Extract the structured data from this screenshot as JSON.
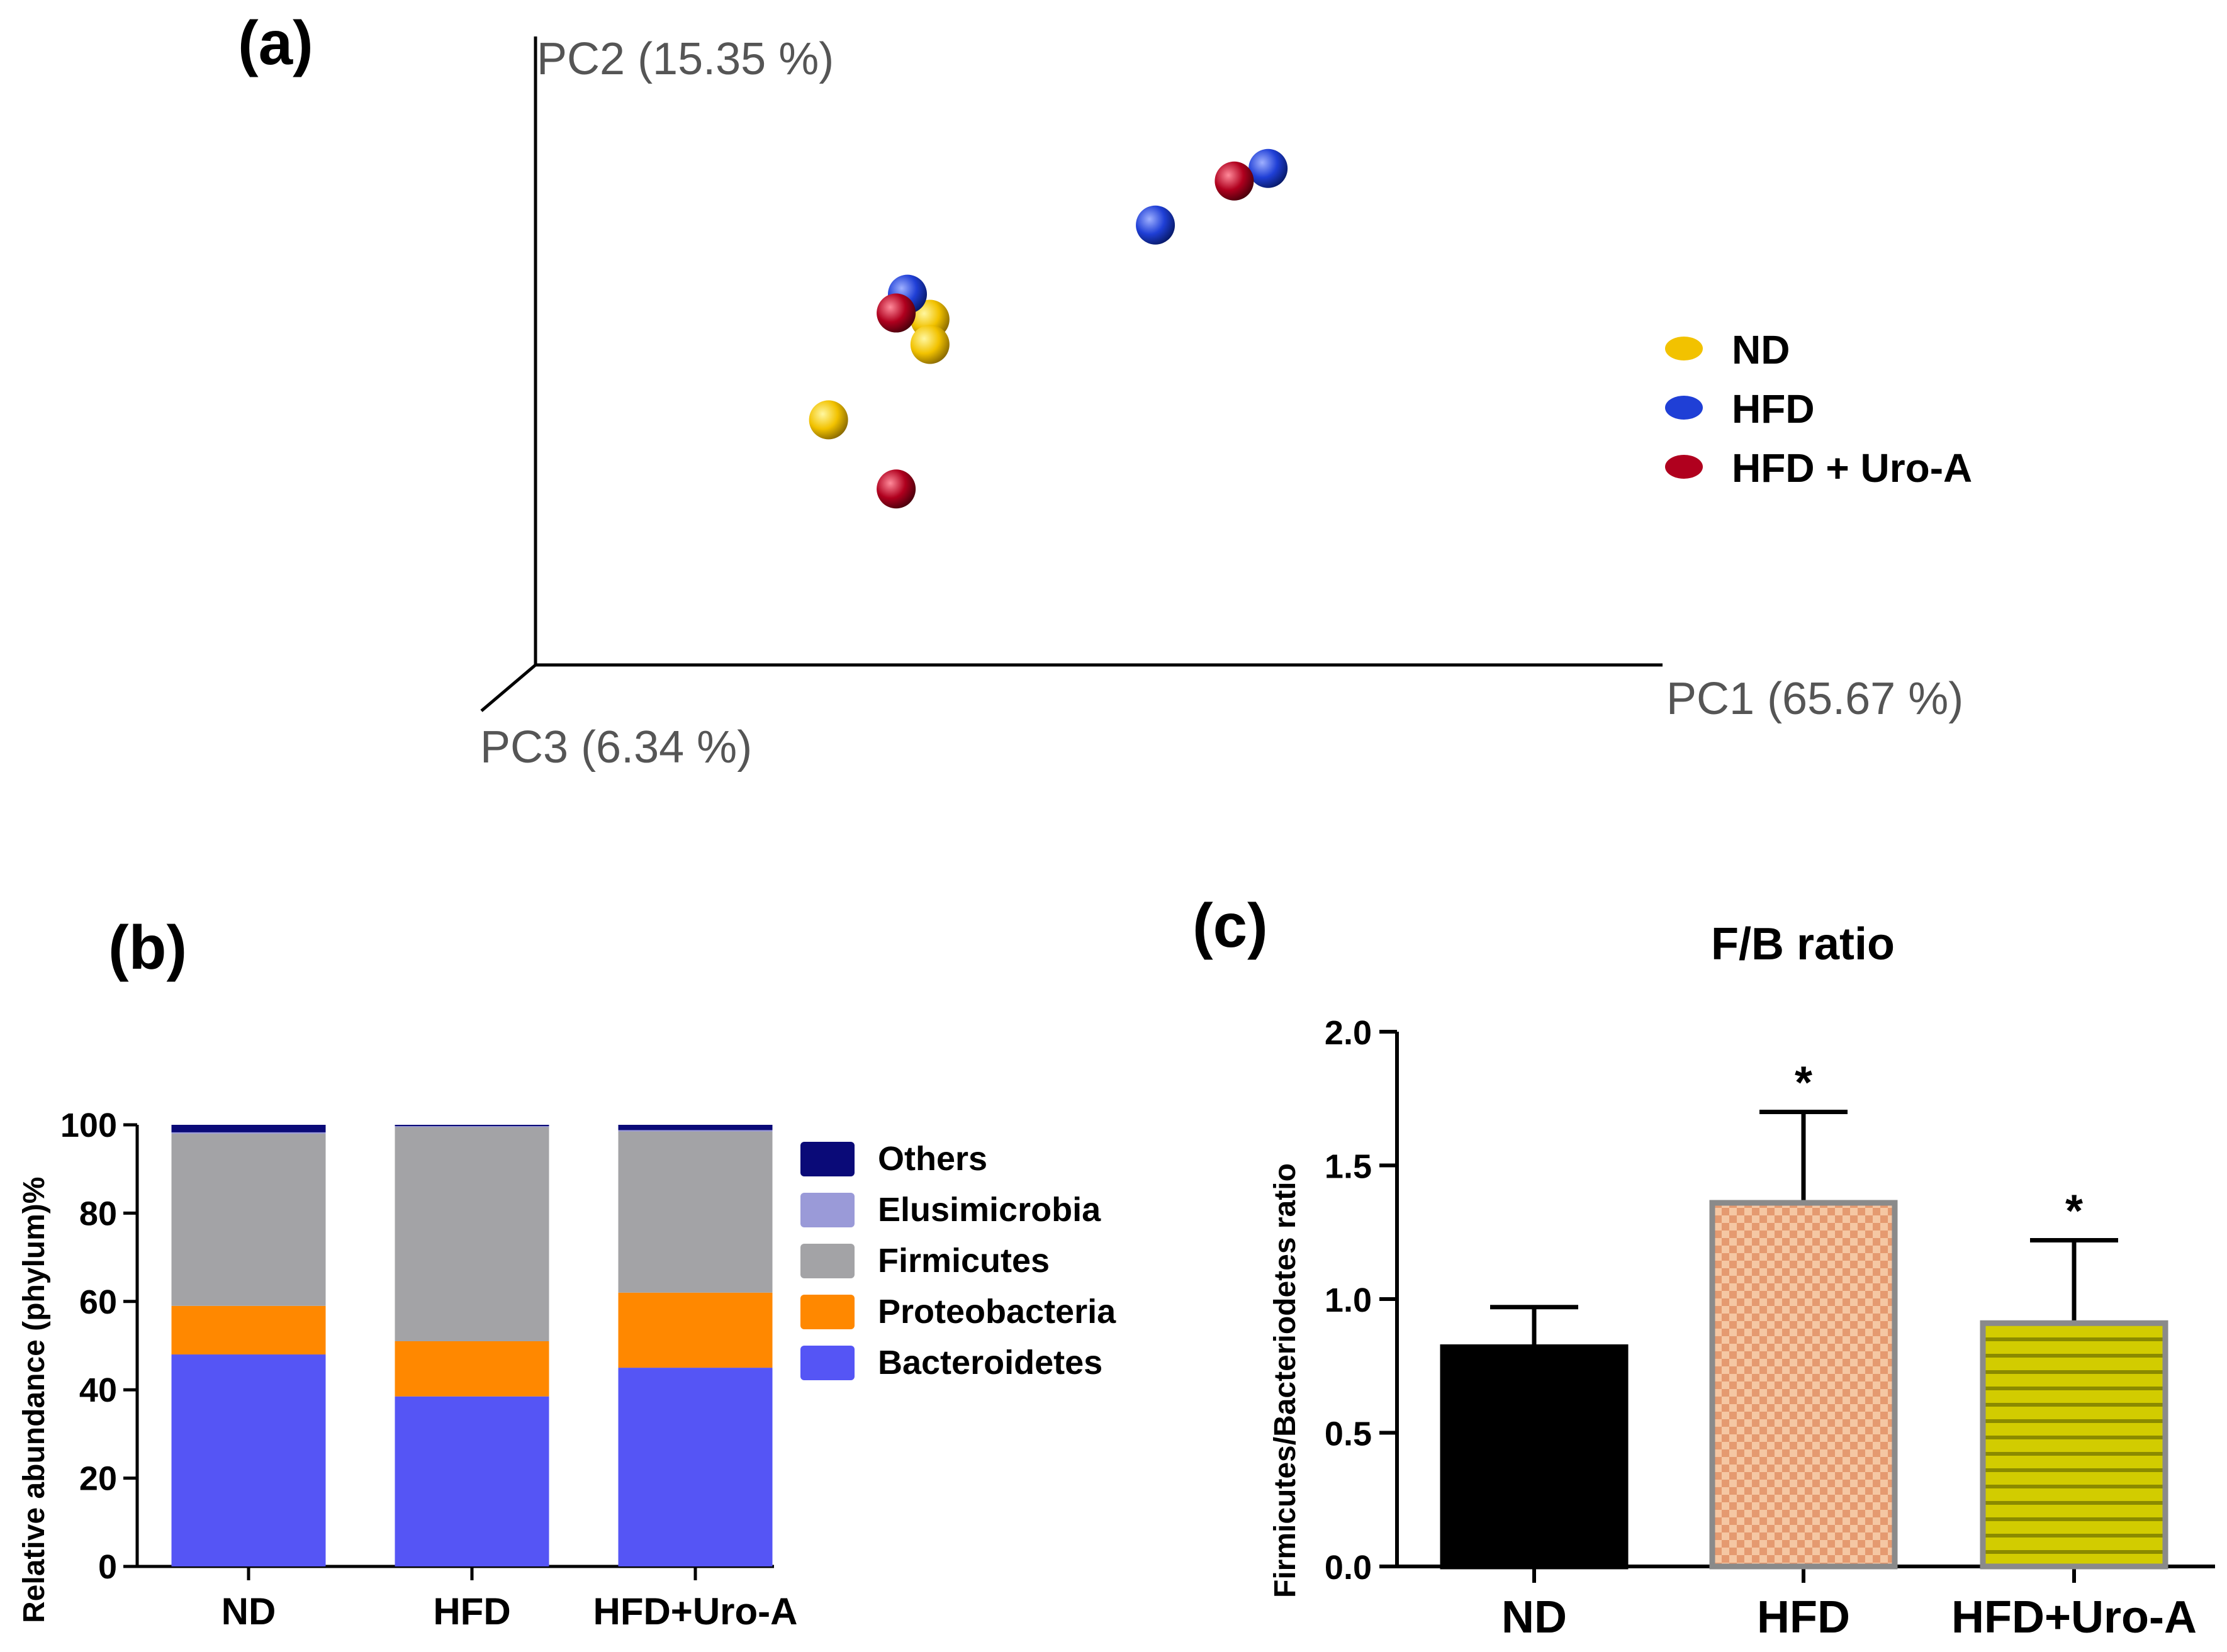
{
  "chart_data": [
    {
      "panel": "(a)",
      "type": "scatter",
      "subtype": "3d-pcoa",
      "axes": {
        "pc1": "PC1 (65.67 %)",
        "pc2": "PC2 (15.35 %)",
        "pc3": "PC3 (6.34 %)"
      },
      "xlim": [
        0,
        1
      ],
      "ylim": [
        0,
        1
      ],
      "series": [
        {
          "name": "ND",
          "color": "#f2c200",
          "points": [
            [
              0.35,
              0.55
            ],
            [
              0.35,
              0.51
            ],
            [
              0.26,
              0.39
            ]
          ]
        },
        {
          "name": "HFD",
          "color": "#1f3fd6",
          "points": [
            [
              0.33,
              0.59
            ],
            [
              0.55,
              0.7
            ],
            [
              0.65,
              0.79
            ]
          ]
        },
        {
          "name": "HFD + Uro-A",
          "color": "#b0001e",
          "points": [
            [
              0.32,
              0.56
            ],
            [
              0.62,
              0.77
            ],
            [
              0.32,
              0.28
            ]
          ]
        }
      ]
    },
    {
      "panel": "(b)",
      "type": "bar",
      "stacked": true,
      "ylabel": "Relative abundance (phylum)%",
      "ylim": [
        0,
        100
      ],
      "yticks": [
        0,
        20,
        40,
        60,
        80,
        100
      ],
      "categories": [
        "ND",
        "HFD",
        "HFD+Uro-A"
      ],
      "series": [
        {
          "name": "Bacteroidetes",
          "color": "#5555f5",
          "values": [
            48,
            38.5,
            45
          ]
        },
        {
          "name": "Proteobacteria",
          "color": "#ff8800",
          "values": [
            11,
            12.5,
            17
          ]
        },
        {
          "name": "Firmicutes",
          "color": "#a3a3a6",
          "values": [
            39,
            48.5,
            36.5
          ]
        },
        {
          "name": "Elusimicrobia",
          "color": "#9a9ad8",
          "values": [
            0.3,
            0.2,
            0.3
          ]
        },
        {
          "name": "Others",
          "color": "#0a0a78",
          "values": [
            1.7,
            0.3,
            1.2
          ]
        }
      ],
      "legend_order": [
        "Others",
        "Elusimicrobia",
        "Firmicutes",
        "Proteobacteria",
        "Bacteroidetes"
      ]
    },
    {
      "panel": "(c)",
      "type": "bar",
      "title": "F/B ratio",
      "ylabel": "Firmicutes/Bacteriodetes ratio",
      "ylim": [
        0,
        2.0
      ],
      "yticks": [
        "0.0",
        "0.5",
        "1.0",
        "1.5",
        "2.0"
      ],
      "categories": [
        "ND",
        "HFD",
        "HFD+Uro-A"
      ],
      "values": [
        0.82,
        1.36,
        0.91
      ],
      "errors": [
        0.15,
        0.34,
        0.31
      ],
      "significance": [
        "",
        "*",
        "*"
      ],
      "colors": [
        "#000000",
        "#f2b48a",
        "#c8c400"
      ]
    }
  ]
}
